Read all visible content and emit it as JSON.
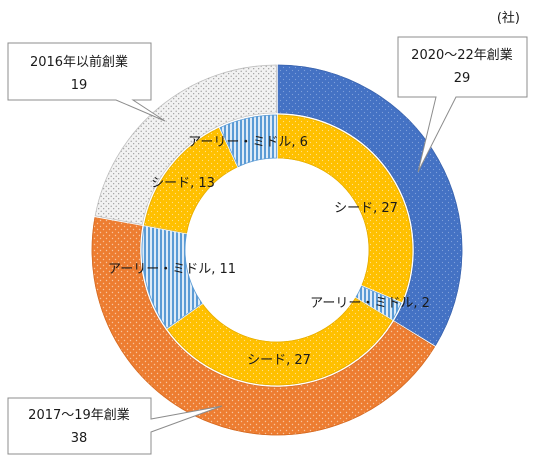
{
  "unit_label": "(社)",
  "colors": {
    "outer": [
      "#4472C4",
      "#ED7D31",
      "#F2F2F2"
    ],
    "inner_seed": "#FFC000",
    "inner_early": "#9DC3E6"
  },
  "chart_data": {
    "type": "pie",
    "subtype": "doughnut",
    "title": "",
    "rings": [
      {
        "ring": "outer",
        "slices": [
          {
            "label": "2020〜22年創業",
            "value": 29
          },
          {
            "label": "2017〜19年創業",
            "value": 38
          },
          {
            "label": "2016年以前創業",
            "value": 19
          }
        ]
      },
      {
        "ring": "inner",
        "slices": [
          {
            "label": "シード",
            "value": 27
          },
          {
            "label": "アーリー・ミドル",
            "value": 2
          },
          {
            "label": "シード",
            "value": 27
          },
          {
            "label": "アーリー・ミドル",
            "value": 11
          },
          {
            "label": "シード",
            "value": 13
          },
          {
            "label": "アーリー・ミドル",
            "value": 6
          }
        ]
      }
    ]
  }
}
